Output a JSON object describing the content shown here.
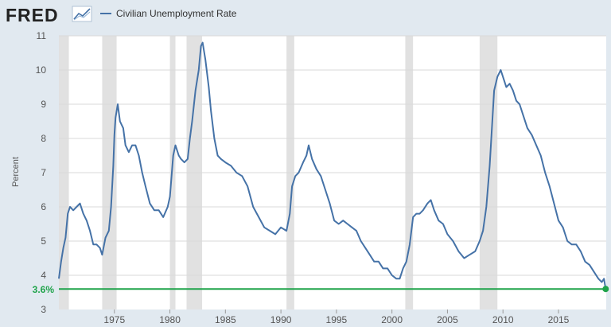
{
  "header": {
    "brand": "FRED",
    "legend_label": "Civilian Unemployment Rate"
  },
  "colors": {
    "background": "#e1e9f0",
    "plot_background": "#ffffff",
    "line": "#4572a7",
    "recession": "#e1e1e1",
    "gridline": "#d9d9d9",
    "reference": "#1fa34a",
    "brand_red": "#b3192a",
    "brand_text": "#222222",
    "tick_text": "#555555"
  },
  "chart_data": {
    "type": "line",
    "title": "",
    "ylabel": "Percent",
    "xlabel": "",
    "xlim": [
      1970.0,
      2019.3
    ],
    "ylim": [
      3,
      11
    ],
    "grid": true,
    "legend_position": "top-left",
    "y_ticks": [
      3,
      4,
      5,
      6,
      7,
      8,
      9,
      10,
      11
    ],
    "x_ticks": [
      1975,
      1980,
      1985,
      1990,
      1995,
      2000,
      2005,
      2010,
      2015
    ],
    "x_tick_labels": [
      "1975",
      "1980",
      "1985",
      "1990",
      "1995",
      "2000",
      "2005",
      "2010",
      "2015"
    ],
    "recessions": [
      [
        1969.9,
        1970.9
      ],
      [
        1973.9,
        1975.2
      ],
      [
        1980.0,
        1980.5
      ],
      [
        1981.5,
        1982.9
      ],
      [
        1990.5,
        1991.2
      ],
      [
        2001.2,
        2001.9
      ],
      [
        2007.9,
        2009.5
      ]
    ],
    "reference_line": {
      "value": 3.6,
      "label": "3.6%"
    },
    "series": [
      {
        "name": "Civilian Unemployment Rate",
        "x": [
          1970.0,
          1970.2,
          1970.4,
          1970.6,
          1970.8,
          1971.0,
          1971.3,
          1971.6,
          1971.9,
          1972.2,
          1972.5,
          1972.8,
          1973.1,
          1973.4,
          1973.7,
          1973.9,
          1974.2,
          1974.5,
          1974.7,
          1974.9,
          1975.0,
          1975.1,
          1975.3,
          1975.5,
          1975.8,
          1976.0,
          1976.3,
          1976.6,
          1976.9,
          1977.2,
          1977.5,
          1977.8,
          1978.2,
          1978.6,
          1979.0,
          1979.4,
          1979.8,
          1980.0,
          1980.3,
          1980.5,
          1980.8,
          1981.0,
          1981.3,
          1981.6,
          1981.8,
          1982.0,
          1982.3,
          1982.6,
          1982.8,
          1982.95,
          1983.2,
          1983.5,
          1983.7,
          1984.0,
          1984.3,
          1984.6,
          1985.0,
          1985.5,
          1986.0,
          1986.5,
          1987.0,
          1987.5,
          1988.0,
          1988.5,
          1989.0,
          1989.5,
          1990.0,
          1990.5,
          1990.8,
          1991.0,
          1991.3,
          1991.6,
          1992.0,
          1992.3,
          1992.5,
          1992.8,
          1993.2,
          1993.6,
          1994.0,
          1994.4,
          1994.8,
          1995.2,
          1995.6,
          1996.0,
          1996.4,
          1996.8,
          1997.2,
          1997.6,
          1998.0,
          1998.4,
          1998.8,
          1999.2,
          1999.6,
          2000.0,
          2000.4,
          2000.7,
          2001.0,
          2001.3,
          2001.6,
          2001.9,
          2002.2,
          2002.5,
          2002.8,
          2003.2,
          2003.5,
          2003.8,
          2004.2,
          2004.6,
          2005.0,
          2005.5,
          2006.0,
          2006.5,
          2007.0,
          2007.5,
          2007.9,
          2008.2,
          2008.5,
          2008.8,
          2009.0,
          2009.2,
          2009.5,
          2009.8,
          2010.0,
          2010.3,
          2010.6,
          2010.9,
          2011.2,
          2011.5,
          2011.8,
          2012.2,
          2012.6,
          2013.0,
          2013.4,
          2013.8,
          2014.2,
          2014.6,
          2015.0,
          2015.4,
          2015.8,
          2016.2,
          2016.6,
          2017.0,
          2017.4,
          2017.8,
          2018.2,
          2018.6,
          2018.9,
          2019.1,
          2019.25
        ],
        "y": [
          3.9,
          4.4,
          4.8,
          5.1,
          5.8,
          6.0,
          5.9,
          6.0,
          6.1,
          5.8,
          5.6,
          5.3,
          4.9,
          4.9,
          4.8,
          4.6,
          5.1,
          5.3,
          6.0,
          7.2,
          8.1,
          8.6,
          9.0,
          8.5,
          8.3,
          7.8,
          7.6,
          7.8,
          7.8,
          7.5,
          7.0,
          6.6,
          6.1,
          5.9,
          5.9,
          5.7,
          6.0,
          6.3,
          7.5,
          7.8,
          7.5,
          7.4,
          7.3,
          7.4,
          8.0,
          8.5,
          9.4,
          10.0,
          10.7,
          10.8,
          10.3,
          9.5,
          8.8,
          8.0,
          7.5,
          7.4,
          7.3,
          7.2,
          7.0,
          6.9,
          6.6,
          6.0,
          5.7,
          5.4,
          5.3,
          5.2,
          5.4,
          5.3,
          5.8,
          6.6,
          6.9,
          7.0,
          7.3,
          7.5,
          7.8,
          7.4,
          7.1,
          6.9,
          6.5,
          6.1,
          5.6,
          5.5,
          5.6,
          5.5,
          5.4,
          5.3,
          5.0,
          4.8,
          4.6,
          4.4,
          4.4,
          4.2,
          4.2,
          4.0,
          3.9,
          3.9,
          4.2,
          4.4,
          4.9,
          5.7,
          5.8,
          5.8,
          5.9,
          6.1,
          6.2,
          5.9,
          5.6,
          5.5,
          5.2,
          5.0,
          4.7,
          4.5,
          4.6,
          4.7,
          5.0,
          5.3,
          6.0,
          7.2,
          8.3,
          9.4,
          9.8,
          10.0,
          9.8,
          9.5,
          9.6,
          9.4,
          9.1,
          9.0,
          8.7,
          8.3,
          8.1,
          7.8,
          7.5,
          7.0,
          6.6,
          6.1,
          5.6,
          5.4,
          5.0,
          4.9,
          4.9,
          4.7,
          4.4,
          4.3,
          4.1,
          3.9,
          3.8,
          3.9,
          3.6
        ]
      }
    ]
  }
}
